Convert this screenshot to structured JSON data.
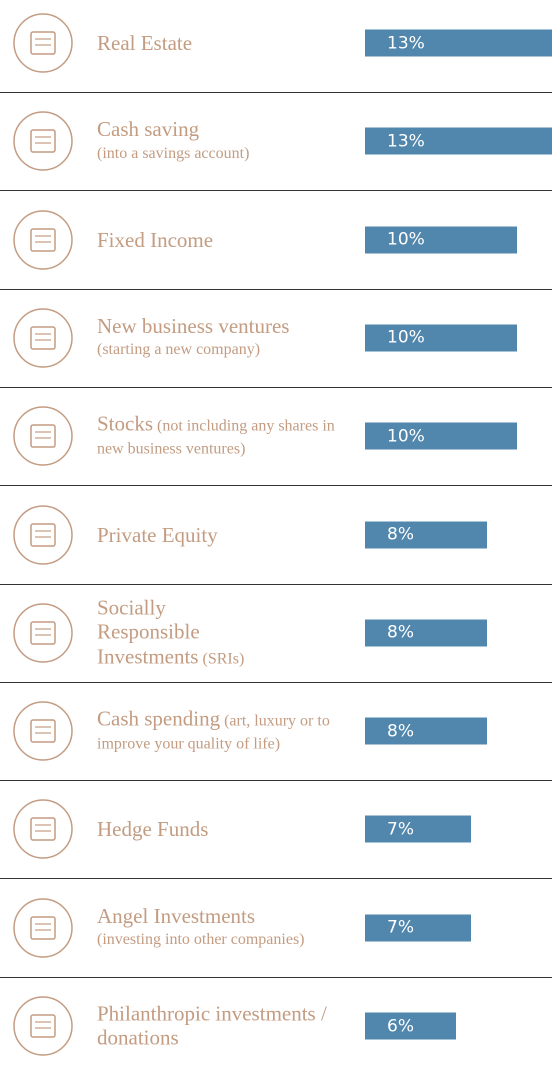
{
  "chart_data": {
    "type": "bar",
    "orientation": "horizontal",
    "color": "#5186ad",
    "categories": [
      "Real Estate",
      "Cash saving",
      "Fixed Income",
      "New business ventures",
      "Stocks",
      "Private Equity",
      "Socially Responsible Investments",
      "Cash spending",
      "Hedge Funds",
      "Angel Investments",
      "Philanthropic investments / donations"
    ],
    "subtitles": [
      null,
      "(into a savings account)",
      null,
      "(starting a new company)",
      "(not including any shares in new business ventures)",
      null,
      "(SRIs)",
      "(art, luxury or to improve your quality of life)",
      null,
      "(investing into other companies)",
      null
    ],
    "values": [
      13,
      13,
      10,
      10,
      10,
      8,
      8,
      8,
      7,
      7,
      6
    ],
    "value_labels": [
      "13%",
      "13%",
      "10%",
      "10%",
      "10%",
      "8%",
      "8%",
      "8%",
      "7%",
      "7%",
      "6%"
    ]
  }
}
